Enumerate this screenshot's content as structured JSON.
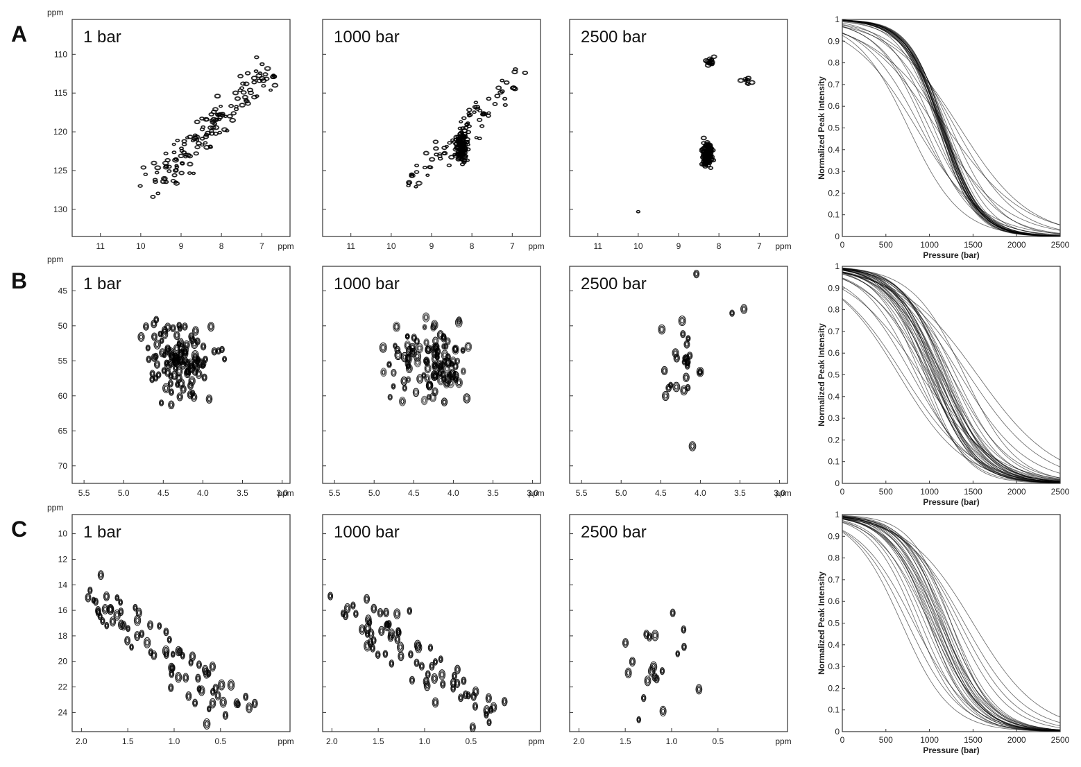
{
  "figure": {
    "rows": [
      {
        "letter": "A",
        "spectra": {
          "y_unit": "ppm",
          "x_unit": "ppm",
          "y_range": [
            105.5,
            133.5
          ],
          "x_range": [
            11.7,
            6.3
          ],
          "y_ticks": [
            "110",
            "115",
            "120",
            "125",
            "130"
          ],
          "x_ticks": [
            "11",
            "10",
            "9",
            "8",
            "7"
          ],
          "pressures": [
            "1 bar",
            "1000 bar",
            "2500 bar"
          ]
        },
        "curves": {
          "ylabel": "Normalized Peak Intensity",
          "xlabel": "Pressure (bar)"
        }
      },
      {
        "letter": "B",
        "spectra": {
          "y_unit": "ppm",
          "x_unit": "ppm",
          "y_range": [
            41.5,
            72.5
          ],
          "x_range": [
            5.65,
            2.9
          ],
          "y_ticks": [
            "45",
            "50",
            "55",
            "60",
            "65",
            "70"
          ],
          "x_ticks": [
            "5.5",
            "5.0",
            "4.5",
            "4.0",
            "3.5",
            "3.0"
          ],
          "pressures": [
            "1 bar",
            "1000 bar",
            "2500 bar"
          ]
        },
        "curves": {
          "ylabel": "Normalized Peak Intensity",
          "xlabel": "Pressure (bar)"
        }
      },
      {
        "letter": "C",
        "spectra": {
          "y_unit": "ppm",
          "x_unit": "ppm",
          "y_range": [
            8.5,
            25.5
          ],
          "x_range": [
            2.1,
            -0.25
          ],
          "y_ticks": [
            "10",
            "12",
            "14",
            "16",
            "18",
            "20",
            "22",
            "24"
          ],
          "x_ticks": [
            "2.0",
            "1.5",
            "1.0",
            "0.5"
          ],
          "pressures": [
            "1 bar",
            "1000 bar",
            "2500 bar"
          ]
        },
        "curves": {
          "ylabel": "Normalized Peak Intensity",
          "xlabel": "Pressure (bar)"
        }
      }
    ]
  },
  "chart_data": [
    {
      "type": "line",
      "panel": "A-curves",
      "title": "",
      "xlabel": "Pressure (bar)",
      "ylabel": "Normalized Peak Intensity",
      "xlim": [
        0,
        2500
      ],
      "ylim": [
        0,
        1
      ],
      "x_ticks": [
        "0",
        "500",
        "1000",
        "1500",
        "2000",
        "2500"
      ],
      "y_ticks": [
        "0",
        "0.1",
        "0.2",
        "0.3",
        "0.4",
        "0.5",
        "0.6",
        "0.7",
        "0.8",
        "0.9",
        "1"
      ],
      "series": [
        {
          "name": "p1",
          "midpoint_bar": 1150,
          "width_bar": 210
        },
        {
          "name": "p2",
          "midpoint_bar": 1130,
          "width_bar": 200
        },
        {
          "name": "p3",
          "midpoint_bar": 1140,
          "width_bar": 215
        },
        {
          "name": "p4",
          "midpoint_bar": 1160,
          "width_bar": 205
        },
        {
          "name": "p5",
          "midpoint_bar": 1120,
          "width_bar": 220
        },
        {
          "name": "p6",
          "midpoint_bar": 1170,
          "width_bar": 200
        },
        {
          "name": "p7",
          "midpoint_bar": 1145,
          "width_bar": 210
        },
        {
          "name": "p8",
          "midpoint_bar": 1155,
          "width_bar": 225
        },
        {
          "name": "p9",
          "midpoint_bar": 1135,
          "width_bar": 205
        },
        {
          "name": "p10",
          "midpoint_bar": 1165,
          "width_bar": 215
        },
        {
          "name": "p11",
          "midpoint_bar": 1110,
          "width_bar": 200
        },
        {
          "name": "p12",
          "midpoint_bar": 1180,
          "width_bar": 210
        },
        {
          "name": "p13",
          "midpoint_bar": 1150,
          "width_bar": 230
        },
        {
          "name": "p14",
          "midpoint_bar": 1125,
          "width_bar": 215
        },
        {
          "name": "p15",
          "midpoint_bar": 1175,
          "width_bar": 205
        },
        {
          "name": "p16",
          "midpoint_bar": 1140,
          "width_bar": 200
        },
        {
          "name": "p17",
          "midpoint_bar": 1100,
          "width_bar": 210
        },
        {
          "name": "p18",
          "midpoint_bar": 1190,
          "width_bar": 220
        },
        {
          "name": "p19",
          "midpoint_bar": 1160,
          "width_bar": 215
        },
        {
          "name": "p20",
          "midpoint_bar": 1130,
          "width_bar": 225
        },
        {
          "name": "p21",
          "midpoint_bar": 1050,
          "width_bar": 260
        },
        {
          "name": "p22",
          "midpoint_bar": 1250,
          "width_bar": 280
        },
        {
          "name": "p23",
          "midpoint_bar": 1300,
          "width_bar": 350
        },
        {
          "name": "p24",
          "midpoint_bar": 1000,
          "width_bar": 300
        },
        {
          "name": "p25",
          "midpoint_bar": 850,
          "width_bar": 380
        },
        {
          "name": "p26",
          "midpoint_bar": 1200,
          "width_bar": 450
        },
        {
          "name": "p27",
          "midpoint_bar": 900,
          "width_bar": 330
        },
        {
          "name": "p28",
          "midpoint_bar": 1150,
          "width_bar": 320
        },
        {
          "name": "p29",
          "midpoint_bar": 950,
          "width_bar": 280
        },
        {
          "name": "p30",
          "midpoint_bar": 1350,
          "width_bar": 400
        },
        {
          "name": "p31",
          "midpoint_bar": 760,
          "width_bar": 300
        },
        {
          "name": "p32",
          "midpoint_bar": 1080,
          "width_bar": 400
        },
        {
          "name": "p33",
          "midpoint_bar": 1100,
          "width_bar": 230
        },
        {
          "name": "p34",
          "midpoint_bar": 1210,
          "width_bar": 240
        }
      ]
    },
    {
      "type": "line",
      "panel": "B-curves",
      "title": "",
      "xlabel": "Pressure (bar)",
      "ylabel": "Normalized Peak Intensity",
      "xlim": [
        0,
        2500
      ],
      "ylim": [
        0,
        1
      ],
      "x_ticks": [
        "0",
        "500",
        "1000",
        "1500",
        "2000",
        "2500"
      ],
      "y_ticks": [
        "0",
        "0.1",
        "0.2",
        "0.3",
        "0.4",
        "0.5",
        "0.6",
        "0.7",
        "0.8",
        "0.9",
        "1"
      ],
      "series": [
        {
          "name": "p1",
          "midpoint_bar": 1100,
          "width_bar": 260
        },
        {
          "name": "p2",
          "midpoint_bar": 1050,
          "width_bar": 240
        },
        {
          "name": "p3",
          "midpoint_bar": 1150,
          "width_bar": 280
        },
        {
          "name": "p4",
          "midpoint_bar": 1000,
          "width_bar": 250
        },
        {
          "name": "p5",
          "midpoint_bar": 1200,
          "width_bar": 270
        },
        {
          "name": "p6",
          "midpoint_bar": 950,
          "width_bar": 230
        },
        {
          "name": "p7",
          "midpoint_bar": 1080,
          "width_bar": 300
        },
        {
          "name": "p8",
          "midpoint_bar": 1130,
          "width_bar": 260
        },
        {
          "name": "p9",
          "midpoint_bar": 1020,
          "width_bar": 280
        },
        {
          "name": "p10",
          "midpoint_bar": 1180,
          "width_bar": 250
        },
        {
          "name": "p11",
          "midpoint_bar": 900,
          "width_bar": 260
        },
        {
          "name": "p12",
          "midpoint_bar": 1250,
          "width_bar": 290
        },
        {
          "name": "p13",
          "midpoint_bar": 1070,
          "width_bar": 240
        },
        {
          "name": "p14",
          "midpoint_bar": 1120,
          "width_bar": 310
        },
        {
          "name": "p15",
          "midpoint_bar": 980,
          "width_bar": 270
        },
        {
          "name": "p16",
          "midpoint_bar": 1160,
          "width_bar": 235
        },
        {
          "name": "p17",
          "midpoint_bar": 1040,
          "width_bar": 255
        },
        {
          "name": "p18",
          "midpoint_bar": 1220,
          "width_bar": 265
        },
        {
          "name": "p19",
          "midpoint_bar": 1090,
          "width_bar": 275
        },
        {
          "name": "p20",
          "midpoint_bar": 1010,
          "width_bar": 245
        },
        {
          "name": "p21",
          "midpoint_bar": 1300,
          "width_bar": 300
        },
        {
          "name": "p22",
          "midpoint_bar": 1140,
          "width_bar": 285
        },
        {
          "name": "p23",
          "midpoint_bar": 1060,
          "width_bar": 230
        },
        {
          "name": "p24",
          "midpoint_bar": 1190,
          "width_bar": 250
        },
        {
          "name": "p25",
          "midpoint_bar": 970,
          "width_bar": 290
        },
        {
          "name": "p26",
          "midpoint_bar": 1110,
          "width_bar": 245
        },
        {
          "name": "p27",
          "midpoint_bar": 800,
          "width_bar": 350
        },
        {
          "name": "p28",
          "midpoint_bar": 700,
          "width_bar": 400
        },
        {
          "name": "p29",
          "midpoint_bar": 1350,
          "width_bar": 380
        },
        {
          "name": "p30",
          "midpoint_bar": 1450,
          "width_bar": 420
        },
        {
          "name": "p31",
          "midpoint_bar": 900,
          "width_bar": 420
        },
        {
          "name": "p32",
          "midpoint_bar": 650,
          "width_bar": 380
        },
        {
          "name": "p33",
          "midpoint_bar": 1000,
          "width_bar": 360
        },
        {
          "name": "p34",
          "midpoint_bar": 1550,
          "width_bar": 450
        },
        {
          "name": "p35",
          "midpoint_bar": 850,
          "width_bar": 300
        },
        {
          "name": "p36",
          "midpoint_bar": 1250,
          "width_bar": 340
        },
        {
          "name": "p37",
          "midpoint_bar": 1150,
          "width_bar": 330
        },
        {
          "name": "p38",
          "midpoint_bar": 1400,
          "width_bar": 300
        },
        {
          "name": "p39",
          "midpoint_bar": 950,
          "width_bar": 330
        },
        {
          "name": "p40",
          "midpoint_bar": 1050,
          "width_bar": 320
        }
      ]
    },
    {
      "type": "line",
      "panel": "C-curves",
      "title": "",
      "xlabel": "Pressure (bar)",
      "ylabel": "Normalized Peak Intensity",
      "xlim": [
        0,
        2500
      ],
      "ylim": [
        0,
        1
      ],
      "x_ticks": [
        "0",
        "500",
        "1000",
        "1500",
        "2000",
        "2500"
      ],
      "y_ticks": [
        "0",
        "0.1",
        "0.2",
        "0.3",
        "0.4",
        "0.5",
        "0.6",
        "0.7",
        "0.8",
        "0.9",
        "1"
      ],
      "series": [
        {
          "name": "p1",
          "midpoint_bar": 1100,
          "width_bar": 240
        },
        {
          "name": "p2",
          "midpoint_bar": 1050,
          "width_bar": 260
        },
        {
          "name": "p3",
          "midpoint_bar": 1150,
          "width_bar": 250
        },
        {
          "name": "p4",
          "midpoint_bar": 1000,
          "width_bar": 230
        },
        {
          "name": "p5",
          "midpoint_bar": 1200,
          "width_bar": 270
        },
        {
          "name": "p6",
          "midpoint_bar": 1080,
          "width_bar": 280
        },
        {
          "name": "p7",
          "midpoint_bar": 1130,
          "width_bar": 235
        },
        {
          "name": "p8",
          "midpoint_bar": 1020,
          "width_bar": 255
        },
        {
          "name": "p9",
          "midpoint_bar": 1180,
          "width_bar": 245
        },
        {
          "name": "p10",
          "midpoint_bar": 950,
          "width_bar": 265
        },
        {
          "name": "p11",
          "midpoint_bar": 1250,
          "width_bar": 260
        },
        {
          "name": "p12",
          "midpoint_bar": 1070,
          "width_bar": 240
        },
        {
          "name": "p13",
          "midpoint_bar": 1120,
          "width_bar": 290
        },
        {
          "name": "p14",
          "midpoint_bar": 990,
          "width_bar": 250
        },
        {
          "name": "p15",
          "midpoint_bar": 1160,
          "width_bar": 225
        },
        {
          "name": "p16",
          "midpoint_bar": 1040,
          "width_bar": 270
        },
        {
          "name": "p17",
          "midpoint_bar": 1210,
          "width_bar": 255
        },
        {
          "name": "p18",
          "midpoint_bar": 1090,
          "width_bar": 245
        },
        {
          "name": "p19",
          "midpoint_bar": 900,
          "width_bar": 260
        },
        {
          "name": "p20",
          "midpoint_bar": 1140,
          "width_bar": 275
        },
        {
          "name": "p21",
          "midpoint_bar": 1300,
          "width_bar": 300
        },
        {
          "name": "p22",
          "midpoint_bar": 750,
          "width_bar": 300
        },
        {
          "name": "p23",
          "midpoint_bar": 680,
          "width_bar": 280
        },
        {
          "name": "p24",
          "midpoint_bar": 820,
          "width_bar": 320
        },
        {
          "name": "p25",
          "midpoint_bar": 1400,
          "width_bar": 350
        },
        {
          "name": "p26",
          "midpoint_bar": 1500,
          "width_bar": 380
        },
        {
          "name": "p27",
          "midpoint_bar": 850,
          "width_bar": 260
        },
        {
          "name": "p28",
          "midpoint_bar": 1350,
          "width_bar": 320
        },
        {
          "name": "p29",
          "midpoint_bar": 1000,
          "width_bar": 300
        },
        {
          "name": "p30",
          "midpoint_bar": 1250,
          "width_bar": 230
        }
      ]
    }
  ]
}
